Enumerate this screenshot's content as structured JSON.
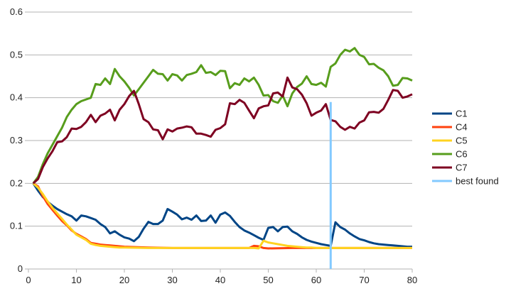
{
  "chart_data": {
    "type": "line",
    "title": "",
    "xlabel": "",
    "ylabel": "",
    "xlim": [
      0,
      80
    ],
    "ylim": [
      0,
      0.6
    ],
    "x_ticks": [
      "0",
      "10",
      "20",
      "30",
      "40",
      "50",
      "60",
      "70",
      "80"
    ],
    "y_ticks": [
      "0",
      "0.1",
      "0.2",
      "0.3",
      "0.4",
      "0.5",
      "0.6"
    ],
    "grid": "horizontal",
    "legend_position": "right",
    "series": [
      {
        "name": "C1",
        "color": "#004586",
        "x": [
          1,
          2,
          3,
          4,
          5,
          6,
          7,
          8,
          9,
          10,
          11,
          12,
          13,
          14,
          15,
          16,
          17,
          18,
          19,
          20,
          21,
          22,
          23,
          24,
          25,
          26,
          27,
          28,
          29,
          30,
          31,
          32,
          33,
          34,
          35,
          36,
          37,
          38,
          39,
          40,
          41,
          42,
          43,
          44,
          45,
          46,
          47,
          48,
          49,
          50,
          51,
          52,
          53,
          54,
          55,
          56,
          57,
          58,
          59,
          60,
          61,
          62,
          63,
          64,
          65,
          66,
          67,
          68,
          69,
          70,
          71,
          72,
          73,
          74,
          75,
          76,
          77,
          78,
          79,
          80
        ],
        "values": [
          0.2,
          0.183,
          0.168,
          0.157,
          0.148,
          0.14,
          0.134,
          0.128,
          0.123,
          0.113,
          0.125,
          0.123,
          0.119,
          0.115,
          0.105,
          0.098,
          0.083,
          0.088,
          0.08,
          0.074,
          0.071,
          0.065,
          0.075,
          0.094,
          0.11,
          0.105,
          0.105,
          0.113,
          0.14,
          0.134,
          0.127,
          0.116,
          0.12,
          0.115,
          0.125,
          0.112,
          0.113,
          0.125,
          0.108,
          0.127,
          0.132,
          0.124,
          0.11,
          0.098,
          0.09,
          0.085,
          0.079,
          0.073,
          0.068,
          0.096,
          0.098,
          0.088,
          0.098,
          0.099,
          0.088,
          0.082,
          0.074,
          0.068,
          0.064,
          0.061,
          0.058,
          0.056,
          0.054,
          0.109,
          0.098,
          0.092,
          0.083,
          0.076,
          0.07,
          0.067,
          0.063,
          0.06,
          0.058,
          0.057,
          0.056,
          0.055,
          0.054,
          0.053,
          0.052,
          0.052
        ]
      },
      {
        "name": "C4",
        "color": "#ff420e",
        "x": [
          1,
          2,
          3,
          4,
          5,
          6,
          7,
          8,
          9,
          10,
          11,
          12,
          13,
          14,
          15,
          16,
          17,
          18,
          19,
          20,
          25,
          30,
          35,
          40,
          45,
          46,
          47,
          48,
          49,
          50,
          55,
          60,
          65,
          70,
          75,
          80
        ],
        "values": [
          0.2,
          0.193,
          0.17,
          0.152,
          0.138,
          0.125,
          0.112,
          0.102,
          0.09,
          0.082,
          0.076,
          0.07,
          0.061,
          0.059,
          0.057,
          0.056,
          0.055,
          0.054,
          0.053,
          0.052,
          0.05,
          0.049,
          0.049,
          0.049,
          0.049,
          0.049,
          0.054,
          0.053,
          0.049,
          0.048,
          0.049,
          0.049,
          0.049,
          0.049,
          0.049,
          0.049
        ]
      },
      {
        "name": "C5",
        "color": "#ffd320",
        "x": [
          1,
          2,
          3,
          4,
          5,
          6,
          7,
          8,
          9,
          10,
          11,
          12,
          13,
          14,
          15,
          16,
          17,
          18,
          19,
          20,
          25,
          30,
          35,
          40,
          45,
          46,
          47,
          48,
          49,
          50,
          51,
          52,
          53,
          54,
          55,
          56,
          57,
          58,
          59,
          60,
          65,
          70,
          75,
          80
        ],
        "values": [
          0.2,
          0.19,
          0.175,
          0.158,
          0.143,
          0.13,
          0.117,
          0.104,
          0.092,
          0.08,
          0.074,
          0.068,
          0.059,
          0.056,
          0.054,
          0.053,
          0.052,
          0.051,
          0.05,
          0.05,
          0.049,
          0.049,
          0.049,
          0.049,
          0.049,
          0.049,
          0.049,
          0.048,
          0.066,
          0.062,
          0.06,
          0.058,
          0.056,
          0.054,
          0.053,
          0.052,
          0.051,
          0.05,
          0.05,
          0.049,
          0.049,
          0.049,
          0.049,
          0.049
        ]
      },
      {
        "name": "C6",
        "color": "#579d1c",
        "x": [
          1,
          2,
          3,
          4,
          5,
          6,
          7,
          8,
          9,
          10,
          11,
          12,
          13,
          14,
          15,
          16,
          17,
          18,
          19,
          20,
          21,
          22,
          23,
          24,
          25,
          26,
          27,
          28,
          29,
          30,
          31,
          32,
          33,
          34,
          35,
          36,
          37,
          38,
          39,
          40,
          41,
          42,
          43,
          44,
          45,
          46,
          47,
          48,
          49,
          50,
          51,
          52,
          53,
          54,
          55,
          56,
          57,
          58,
          59,
          60,
          61,
          62,
          63,
          64,
          65,
          66,
          67,
          68,
          69,
          70,
          71,
          72,
          73,
          74,
          75,
          76,
          77,
          78,
          79,
          80
        ],
        "values": [
          0.2,
          0.215,
          0.245,
          0.27,
          0.29,
          0.31,
          0.33,
          0.355,
          0.372,
          0.385,
          0.392,
          0.396,
          0.4,
          0.432,
          0.43,
          0.445,
          0.432,
          0.467,
          0.45,
          0.438,
          0.423,
          0.405,
          0.42,
          0.435,
          0.45,
          0.465,
          0.456,
          0.455,
          0.44,
          0.455,
          0.452,
          0.44,
          0.453,
          0.456,
          0.46,
          0.476,
          0.458,
          0.46,
          0.453,
          0.463,
          0.462,
          0.422,
          0.434,
          0.43,
          0.445,
          0.438,
          0.447,
          0.43,
          0.405,
          0.406,
          0.392,
          0.388,
          0.405,
          0.38,
          0.41,
          0.425,
          0.433,
          0.45,
          0.432,
          0.43,
          0.435,
          0.426,
          0.472,
          0.48,
          0.5,
          0.512,
          0.508,
          0.516,
          0.5,
          0.495,
          0.478,
          0.479,
          0.47,
          0.464,
          0.45,
          0.428,
          0.43,
          0.446,
          0.445,
          0.44
        ]
      },
      {
        "name": "C7",
        "color": "#7e0021",
        "x": [
          1,
          2,
          3,
          4,
          5,
          6,
          7,
          8,
          9,
          10,
          11,
          12,
          13,
          14,
          15,
          16,
          17,
          18,
          19,
          20,
          21,
          22,
          23,
          24,
          25,
          26,
          27,
          28,
          29,
          30,
          31,
          32,
          33,
          34,
          35,
          36,
          37,
          38,
          39,
          40,
          41,
          42,
          43,
          44,
          45,
          46,
          47,
          48,
          49,
          50,
          51,
          52,
          53,
          54,
          55,
          56,
          57,
          58,
          59,
          60,
          61,
          62,
          63,
          64,
          65,
          66,
          67,
          68,
          69,
          70,
          71,
          72,
          73,
          74,
          75,
          76,
          77,
          78,
          79,
          80
        ],
        "values": [
          0.2,
          0.21,
          0.238,
          0.258,
          0.275,
          0.296,
          0.298,
          0.308,
          0.328,
          0.327,
          0.332,
          0.343,
          0.36,
          0.343,
          0.358,
          0.363,
          0.372,
          0.347,
          0.372,
          0.385,
          0.404,
          0.416,
          0.385,
          0.35,
          0.343,
          0.326,
          0.324,
          0.303,
          0.326,
          0.321,
          0.328,
          0.33,
          0.333,
          0.331,
          0.316,
          0.316,
          0.313,
          0.309,
          0.325,
          0.329,
          0.338,
          0.387,
          0.385,
          0.395,
          0.388,
          0.37,
          0.352,
          0.375,
          0.38,
          0.382,
          0.41,
          0.412,
          0.403,
          0.447,
          0.424,
          0.42,
          0.407,
          0.387,
          0.358,
          0.365,
          0.37,
          0.385,
          0.348,
          0.345,
          0.332,
          0.325,
          0.332,
          0.328,
          0.342,
          0.347,
          0.366,
          0.367,
          0.365,
          0.374,
          0.395,
          0.418,
          0.416,
          0.4,
          0.403,
          0.408
        ]
      },
      {
        "name": "best found",
        "color": "#83caff",
        "x": [
          63,
          63
        ],
        "values": [
          0.39,
          0
        ]
      }
    ]
  }
}
